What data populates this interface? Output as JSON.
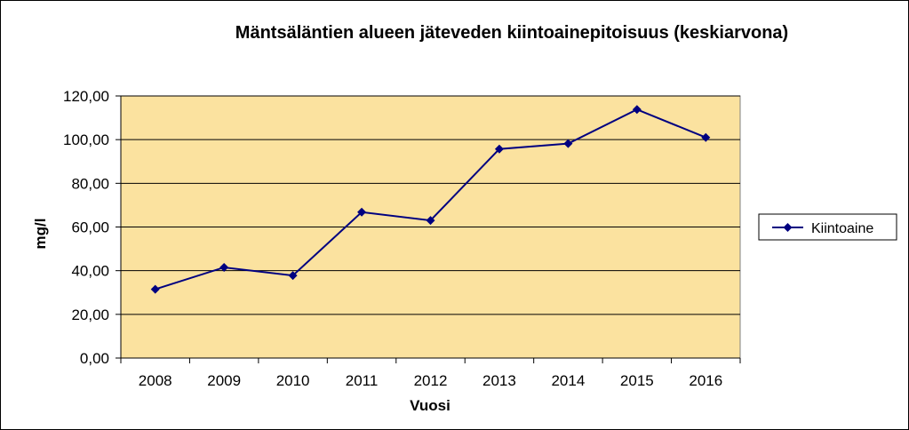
{
  "chart_data": {
    "type": "line",
    "title": "Mäntsäläntien alueen jäteveden kiintoainepitoisuus (keskiarvona)",
    "xlabel": "Vuosi",
    "ylabel": "mg/l",
    "categories": [
      "2008",
      "2009",
      "2010",
      "2011",
      "2012",
      "2013",
      "2014",
      "2015",
      "2016"
    ],
    "series": [
      {
        "name": "Kiintoaine",
        "values": [
          31.5,
          41.5,
          37.8,
          66.8,
          63.0,
          95.7,
          98.2,
          113.8,
          101.0
        ]
      }
    ],
    "ylim": [
      0,
      120
    ],
    "yticks": [
      0,
      20,
      40,
      60,
      80,
      100,
      120
    ],
    "ytick_labels": [
      "0,00",
      "20,00",
      "40,00",
      "60,00",
      "80,00",
      "100,00",
      "120,00"
    ],
    "grid": true,
    "legend": "right",
    "colors": {
      "plot_bg": "#FBE29F",
      "series": "#000080",
      "grid": "#000000"
    }
  }
}
